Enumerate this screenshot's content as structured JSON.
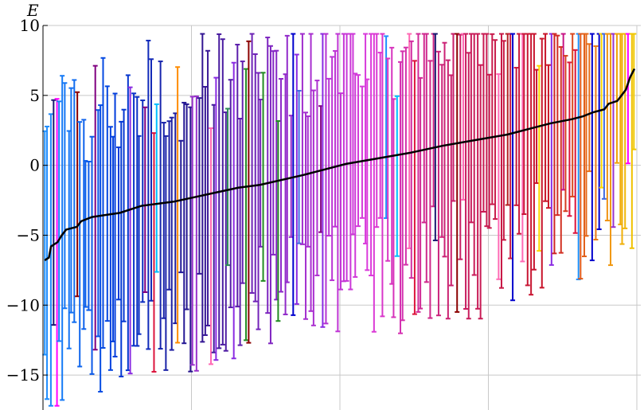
{
  "chart_data": {
    "type": "errorbar",
    "title": "",
    "xlabel": "",
    "ylabel": "E",
    "ylim": [
      -17.5,
      10
    ],
    "x_gridlines": 4,
    "y_ticks": [
      10,
      5,
      0,
      -5,
      -10,
      -15
    ],
    "y_tick_labels": [
      "10",
      "5",
      "0",
      "−5",
      "−10",
      "−15"
    ],
    "grid": true,
    "n_levels": 200,
    "center_line": {
      "color": "#000000",
      "description_points": [
        [
          0,
          -6.8
        ],
        [
          2,
          -6.6
        ],
        [
          3,
          -5.8
        ],
        [
          6,
          -5.5
        ],
        [
          8,
          -5.0
        ],
        [
          10,
          -4.6
        ],
        [
          15,
          -4.4
        ],
        [
          17,
          -4.0
        ],
        [
          22,
          -3.7
        ],
        [
          35,
          -3.4
        ],
        [
          45,
          -2.9
        ],
        [
          60,
          -2.6
        ],
        [
          75,
          -2.1
        ],
        [
          90,
          -1.6
        ],
        [
          100,
          -1.4
        ],
        [
          120,
          -0.7
        ],
        [
          130,
          -0.3
        ],
        [
          140,
          0.1
        ],
        [
          155,
          0.5
        ],
        [
          170,
          0.9
        ],
        [
          185,
          1.4
        ],
        [
          200,
          1.8
        ],
        [
          215,
          2.2
        ],
        [
          225,
          2.6
        ],
        [
          235,
          3.0
        ],
        [
          245,
          3.3
        ],
        [
          250,
          3.5
        ],
        [
          255,
          3.8
        ],
        [
          260,
          4.0
        ],
        [
          262,
          4.4
        ],
        [
          266,
          4.6
        ],
        [
          268,
          5.0
        ],
        [
          270,
          5.4
        ],
        [
          272,
          6.3
        ],
        [
          274,
          6.9
        ]
      ]
    },
    "palette": [
      "#1e90ff",
      "#0000cd",
      "#00bfff",
      "#191970",
      "#8a2be2",
      "#4169e1",
      "#2e8b57",
      "#9932cc",
      "#ff00ff",
      "#800080",
      "#dc143c",
      "#ff69b4",
      "#8b0000",
      "#ff8c00",
      "#ffd700",
      "#b22222",
      "#c71585",
      "#228b22"
    ]
  }
}
